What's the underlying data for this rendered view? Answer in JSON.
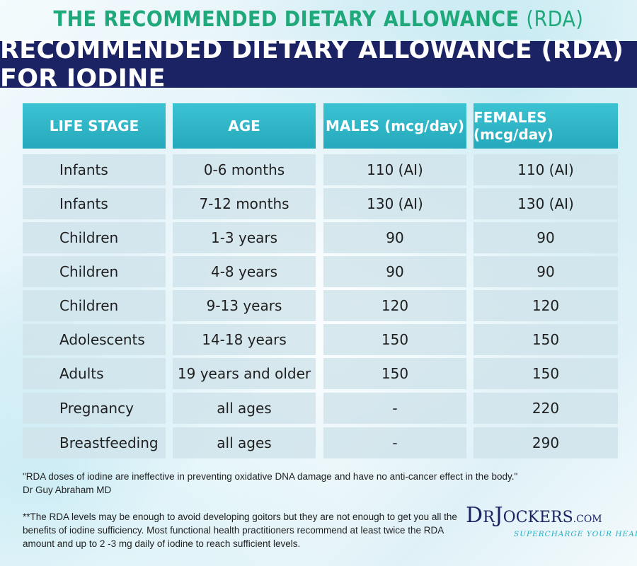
{
  "header": {
    "top_title_main": "THE RECOMMENDED DIETARY ALLOWANCE",
    "top_title_paren": "(RDA)",
    "banner_title": "RECOMMENDED DIETARY ALLOWANCE (RDA) FOR IODINE"
  },
  "table": {
    "columns": [
      "LIFE STAGE",
      "AGE",
      "MALES (mcg/day)",
      "FEMALES (mcg/day)"
    ],
    "rows": [
      [
        "Infants",
        "0-6 months",
        "110 (AI)",
        "110 (AI)"
      ],
      [
        "Infants",
        "7-12 months",
        "130 (AI)",
        "130 (AI)"
      ],
      [
        "Children",
        "1-3 years",
        "90",
        "90"
      ],
      [
        "Children",
        "4-8 years",
        "90",
        "90"
      ],
      [
        "Children",
        "9-13 years",
        "120",
        "120"
      ],
      [
        "Adolescents",
        "14-18 years",
        "150",
        "150"
      ],
      [
        "Adults",
        "19 years and older",
        "150",
        "150"
      ],
      [
        "Pregnancy",
        "all ages",
        "-",
        "220"
      ],
      [
        "Breastfeeding",
        "all ages",
        "-",
        "290"
      ]
    ]
  },
  "footnotes": {
    "quote": "\"RDA doses of iodine are ineffective in preventing oxidative DNA damage and have no anti-cancer effect in the body.\"",
    "quote_author": "Dr Guy Abraham MD",
    "note": "**The RDA levels may be enough to avoid developing goitors but they are not enough to get you all the benefits of iodine sufficiency. Most functional health practitioners recommend at least twice the RDA amount and up to 2 -3 mg daily of iodine to reach sufficient levels."
  },
  "logo": {
    "dr": "D",
    "r": "R",
    "j": "J",
    "ockers": "OCKERS",
    "com": ".COM",
    "tagline": "SUPERCHARGE YOUR HEALTH"
  },
  "colors": {
    "navy": "#1c2365",
    "green": "#1fa97a",
    "teal": "#25a9bc",
    "row_bg": "#d0e3ea"
  }
}
